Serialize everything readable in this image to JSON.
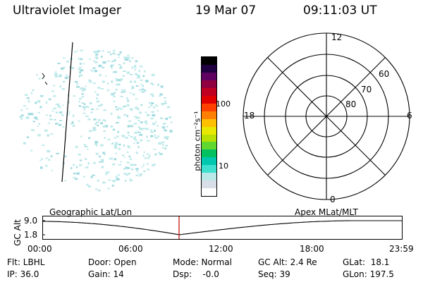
{
  "header": {
    "title": "Ultraviolet Imager",
    "date": "19 Mar 07",
    "time": "09:11:03 UT"
  },
  "colorbar": {
    "unit_label": "photon cm⁻²s⁻¹",
    "ticks": [
      "100",
      "10"
    ],
    "colors": [
      "#ffffff",
      "#d8dde6",
      "#b8e8e8",
      "#40e0d0",
      "#00c8b0",
      "#00c060",
      "#60d830",
      "#b8e000",
      "#e8e800",
      "#ffc000",
      "#ff8000",
      "#ff4000",
      "#e00000",
      "#c00020",
      "#900040",
      "#600060",
      "#200040",
      "#000000"
    ]
  },
  "polar_plot": {
    "hour_labels": {
      "top": "12",
      "left": "18",
      "right": "6",
      "bottom": "0"
    },
    "lat_labels": [
      "60",
      "70",
      "80"
    ]
  },
  "altitude_panel": {
    "axis_label": "GC Alt",
    "y_ticks": [
      "9.0",
      "1.8"
    ],
    "left_title": "Geographic Lat/Lon",
    "right_title": "Apex  MLat/MLT",
    "x_ticks": [
      "00:00",
      "06:00",
      "12:00",
      "18:00",
      "23:59"
    ],
    "current_time_marker_color": "#c00000"
  },
  "info": {
    "flt": "Flt: LBHL",
    "ip": "IP: 36.0",
    "door": "Door: Open",
    "gain": "Gain: 14",
    "mode": "Mode: Normal",
    "dsp": "Dsp:    -0.0",
    "gcalt": "GC Alt: 2.4 Re",
    "seq": "Seq: 39",
    "glat": "GLat:  18.1",
    "glon": "GLon: 197.5"
  }
}
